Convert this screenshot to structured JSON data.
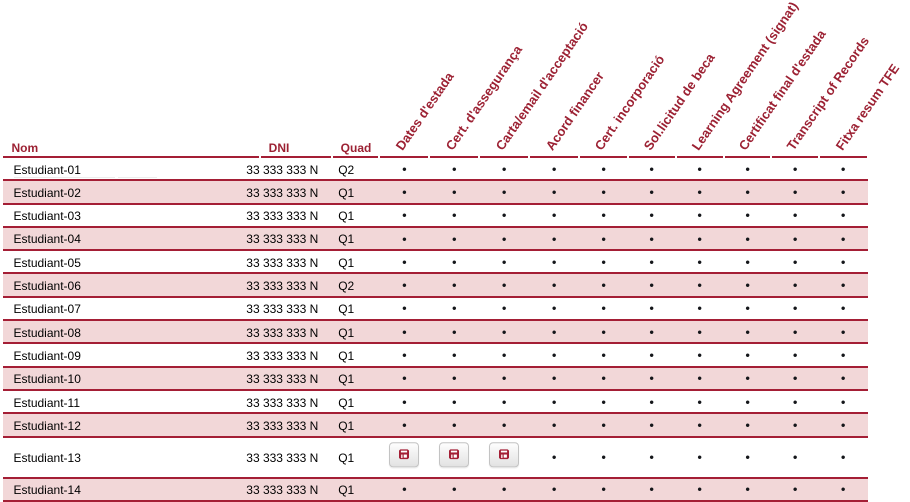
{
  "table": {
    "headers": {
      "nom": "Nom",
      "dni": "DNI",
      "quad": "Quad"
    },
    "doc_columns": [
      "Dates d'estada",
      "Cert. d'assegurança",
      "Carta/email d'acceptació",
      "Acord financer",
      "Cert. incorporació",
      "Sol.licitud de beca",
      "Learning Agreement (signat)",
      "Certificat final d'estada",
      "Transcript of Records",
      "Fitxa resum TFE"
    ],
    "bullet_char": "•",
    "save_icon": "floppy-disk-save-icon",
    "colors": {
      "accent_maroon": "#A41E35",
      "header_text": "#9C2133",
      "row_stripe_pink": "#F2D7D8",
      "bullet": "#14161a",
      "row_text": "#000000"
    },
    "rows": [
      {
        "nom": "Estudiant-01",
        "dni": "33 333 333 N",
        "quad": "Q2",
        "docs": [
          "dot",
          "dot",
          "dot",
          "dot",
          "dot",
          "dot",
          "dot",
          "dot",
          "dot",
          "dot"
        ]
      },
      {
        "nom": "Estudiant-02",
        "dni": "33 333 333 N",
        "quad": "Q1",
        "docs": [
          "dot",
          "dot",
          "dot",
          "dot",
          "dot",
          "dot",
          "dot",
          "dot",
          "dot",
          "dot"
        ]
      },
      {
        "nom": "Estudiant-03",
        "dni": "33 333 333 N",
        "quad": "Q1",
        "docs": [
          "dot",
          "dot",
          "dot",
          "dot",
          "dot",
          "dot",
          "dot",
          "dot",
          "dot",
          "dot"
        ]
      },
      {
        "nom": "Estudiant-04",
        "dni": "33 333 333 N",
        "quad": "Q1",
        "docs": [
          "dot",
          "dot",
          "dot",
          "dot",
          "dot",
          "dot",
          "dot",
          "dot",
          "dot",
          "dot"
        ]
      },
      {
        "nom": "Estudiant-05",
        "dni": "33 333 333 N",
        "quad": "Q1",
        "docs": [
          "dot",
          "dot",
          "dot",
          "dot",
          "dot",
          "dot",
          "dot",
          "dot",
          "dot",
          "dot"
        ]
      },
      {
        "nom": "Estudiant-06",
        "dni": "33 333 333 N",
        "quad": "Q2",
        "docs": [
          "dot",
          "dot",
          "dot",
          "dot",
          "dot",
          "dot",
          "dot",
          "dot",
          "dot",
          "dot"
        ]
      },
      {
        "nom": "Estudiant-07",
        "dni": "33 333 333 N",
        "quad": "Q1",
        "docs": [
          "dot",
          "dot",
          "dot",
          "dot",
          "dot",
          "dot",
          "dot",
          "dot",
          "dot",
          "dot"
        ]
      },
      {
        "nom": "Estudiant-08",
        "dni": "33 333 333 N",
        "quad": "Q1",
        "docs": [
          "dot",
          "dot",
          "dot",
          "dot",
          "dot",
          "dot",
          "dot",
          "dot",
          "dot",
          "dot"
        ]
      },
      {
        "nom": "Estudiant-09",
        "dni": "33 333 333 N",
        "quad": "Q1",
        "docs": [
          "dot",
          "dot",
          "dot",
          "dot",
          "dot",
          "dot",
          "dot",
          "dot",
          "dot",
          "dot"
        ]
      },
      {
        "nom": "Estudiant-10",
        "dni": "33 333 333 N",
        "quad": "Q1",
        "docs": [
          "dot",
          "dot",
          "dot",
          "dot",
          "dot",
          "dot",
          "dot",
          "dot",
          "dot",
          "dot"
        ]
      },
      {
        "nom": "Estudiant-11",
        "dni": "33 333 333 N",
        "quad": "Q1",
        "docs": [
          "dot",
          "dot",
          "dot",
          "dot",
          "dot",
          "dot",
          "dot",
          "dot",
          "dot",
          "dot"
        ]
      },
      {
        "nom": "Estudiant-12",
        "dni": "33 333 333 N",
        "quad": "Q1",
        "docs": [
          "dot",
          "dot",
          "dot",
          "dot",
          "dot",
          "dot",
          "dot",
          "dot",
          "dot",
          "dot"
        ]
      },
      {
        "nom": "Estudiant-13",
        "dni": "33 333 333 N",
        "quad": "Q1",
        "docs": [
          "save",
          "save",
          "save",
          "dot",
          "dot",
          "dot",
          "dot",
          "dot",
          "dot",
          "dot"
        ]
      },
      {
        "nom": "Estudiant-14",
        "dni": "33 333 333 N",
        "quad": "Q1",
        "docs": [
          "dot",
          "dot",
          "dot",
          "dot",
          "dot",
          "dot",
          "dot",
          "dot",
          "dot",
          "dot"
        ]
      }
    ]
  }
}
